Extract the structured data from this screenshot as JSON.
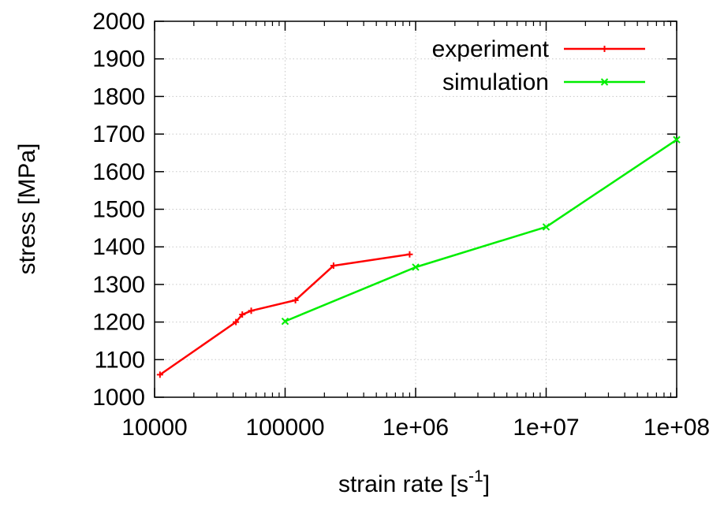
{
  "chart_data": {
    "type": "line",
    "title": "",
    "xlabel": {
      "base": "strain rate [s",
      "sup": "-1",
      "tail": "]"
    },
    "ylabel": "stress [MPa]",
    "xscale": "log",
    "xlim": [
      10000,
      100000000
    ],
    "ylim": [
      1000,
      2000
    ],
    "x_ticks": [
      10000,
      100000,
      1000000,
      10000000,
      100000000
    ],
    "x_tick_labels": [
      "10000",
      "100000",
      "1e+06",
      "1e+07",
      "1e+08"
    ],
    "y_ticks": [
      1000,
      1100,
      1200,
      1300,
      1400,
      1500,
      1600,
      1700,
      1800,
      1900,
      2000
    ],
    "y_tick_labels": [
      "1000",
      "1100",
      "1200",
      "1300",
      "1400",
      "1500",
      "1600",
      "1700",
      "1800",
      "1900",
      "2000"
    ],
    "grid": true,
    "legend_position": "top-right",
    "series": [
      {
        "name": "experiment",
        "color": "#ff0000",
        "marker": "plus",
        "x": [
          11000,
          42000,
          47000,
          55000,
          120000,
          235000,
          900000
        ],
        "y": [
          1060,
          1200,
          1220,
          1230,
          1258,
          1350,
          1380
        ]
      },
      {
        "name": "simulation",
        "color": "#00ee00",
        "marker": "cross",
        "x": [
          100000,
          1000000,
          10000000,
          100000000
        ],
        "y": [
          1202,
          1346,
          1453,
          1685
        ]
      }
    ]
  }
}
